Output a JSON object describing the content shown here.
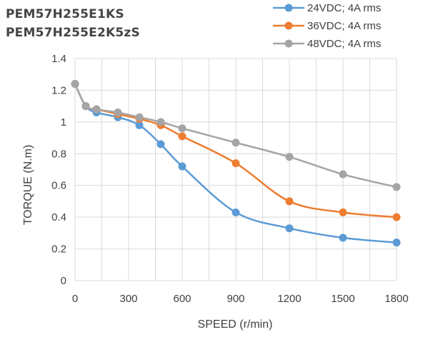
{
  "chart_data": {
    "type": "line",
    "title_lines": [
      "PEM57H255E1KS",
      "PEM57H255E2K5zS"
    ],
    "xlabel": "SPEED (r/min)",
    "ylabel": "TORQUE (N.m)",
    "xlim": [
      0,
      1800
    ],
    "ylim": [
      0,
      1.4
    ],
    "xticks": [
      0,
      300,
      600,
      900,
      1200,
      1500,
      1800
    ],
    "yticks": [
      0,
      0.2,
      0.4,
      0.6,
      0.8,
      1,
      1.2,
      1.4
    ],
    "grid": true,
    "legend_position": "top-right",
    "series": [
      {
        "name": "24VDC; 4A rms",
        "color": "#5b9bd5",
        "x": [
          0,
          60,
          120,
          240,
          360,
          480,
          600,
          900,
          1200,
          1500,
          1800
        ],
        "y": [
          1.24,
          1.1,
          1.06,
          1.03,
          0.98,
          0.86,
          0.72,
          0.43,
          0.33,
          0.27,
          0.24
        ]
      },
      {
        "name": "36VDC; 4A rms",
        "color": "#ed7d31",
        "x": [
          0,
          60,
          120,
          240,
          360,
          480,
          600,
          900,
          1200,
          1500,
          1800
        ],
        "y": [
          1.24,
          1.1,
          1.08,
          1.05,
          1.02,
          0.98,
          0.91,
          0.74,
          0.5,
          0.43,
          0.4
        ]
      },
      {
        "name": "48VDC; 4A rms",
        "color": "#a5a5a5",
        "x": [
          0,
          60,
          120,
          240,
          360,
          480,
          600,
          900,
          1200,
          1500,
          1800
        ],
        "y": [
          1.24,
          1.1,
          1.08,
          1.06,
          1.03,
          1.0,
          0.96,
          0.87,
          0.78,
          0.67,
          0.59
        ]
      }
    ]
  }
}
